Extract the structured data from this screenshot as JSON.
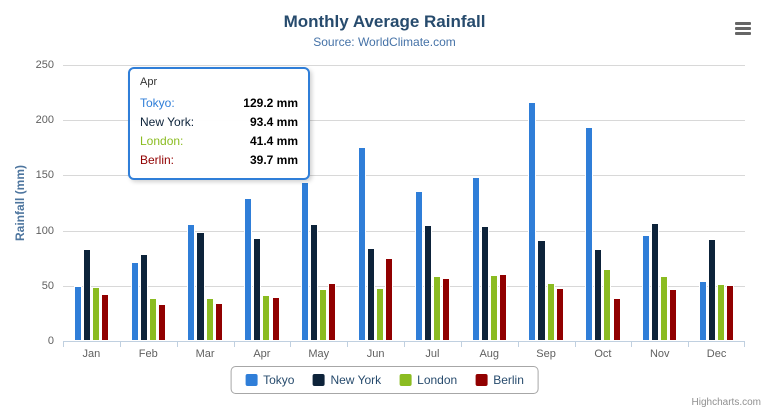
{
  "chart": {
    "title": "Monthly Average Rainfall",
    "subtitle": "Source: WorldClimate.com",
    "y_axis_title": "Rainfall (mm)",
    "credits": "Highcharts.com"
  },
  "icons": {
    "menu": "hamburger-menu"
  },
  "chart_data": {
    "type": "bar",
    "title": "Monthly Average Rainfall",
    "subtitle": "Source: WorldClimate.com",
    "xlabel": "",
    "ylabel": "Rainfall (mm)",
    "ylim": [
      0,
      250
    ],
    "y_ticks": [
      0,
      50,
      100,
      150,
      200,
      250
    ],
    "grid": true,
    "legend_position": "bottom",
    "categories": [
      "Jan",
      "Feb",
      "Mar",
      "Apr",
      "May",
      "Jun",
      "Jul",
      "Aug",
      "Sep",
      "Oct",
      "Nov",
      "Dec"
    ],
    "series": [
      {
        "name": "Tokyo",
        "color": "#2f7ed8",
        "values": [
          49.9,
          71.5,
          106.4,
          129.2,
          144.0,
          176.0,
          135.6,
          148.5,
          216.4,
          194.1,
          95.6,
          54.4
        ]
      },
      {
        "name": "New York",
        "color": "#0d233a",
        "values": [
          83.6,
          78.8,
          98.5,
          93.4,
          106.0,
          84.5,
          105.0,
          104.3,
          91.2,
          83.5,
          106.6,
          92.3
        ]
      },
      {
        "name": "London",
        "color": "#8bbc21",
        "values": [
          48.9,
          38.8,
          39.3,
          41.4,
          47.0,
          48.3,
          59.0,
          59.6,
          52.4,
          65.2,
          59.3,
          51.2
        ]
      },
      {
        "name": "Berlin",
        "color": "#910000",
        "values": [
          42.4,
          33.2,
          34.5,
          39.7,
          52.6,
          75.5,
          57.4,
          60.4,
          47.6,
          39.1,
          46.8,
          51.1
        ]
      }
    ]
  },
  "tooltip": {
    "header": "Apr",
    "rows": [
      {
        "label": "Tokyo:",
        "value": "129.2 mm",
        "color": "#2f7ed8"
      },
      {
        "label": "New York:",
        "value": "93.4 mm",
        "color": "#0d233a"
      },
      {
        "label": "London:",
        "value": "41.4 mm",
        "color": "#8bbc21"
      },
      {
        "label": "Berlin:",
        "value": "39.7 mm",
        "color": "#910000"
      }
    ]
  }
}
